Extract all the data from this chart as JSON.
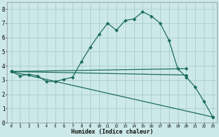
{
  "xlabel": "Humidex (Indice chaleur)",
  "bg_color": "#cce8e8",
  "grid_color": "#aacccc",
  "line_color": "#1a6b5a",
  "xlim": [
    -0.5,
    23.5
  ],
  "ylim": [
    0,
    8.5
  ],
  "xticks": [
    0,
    1,
    2,
    3,
    4,
    5,
    6,
    7,
    8,
    9,
    10,
    11,
    12,
    13,
    14,
    15,
    16,
    17,
    18,
    19,
    20,
    21,
    22,
    23
  ],
  "yticks": [
    0,
    1,
    2,
    3,
    4,
    5,
    6,
    7,
    8
  ],
  "series_main": {
    "x": [
      0,
      1,
      2,
      3,
      4,
      5,
      6,
      7,
      8,
      9,
      10,
      11,
      12,
      13,
      14,
      15,
      16,
      17,
      18,
      19,
      20,
      21,
      22,
      23
    ],
    "y": [
      3.6,
      3.3,
      3.4,
      3.3,
      2.9,
      2.9,
      3.05,
      3.2,
      4.3,
      5.3,
      6.2,
      7.0,
      6.5,
      7.2,
      7.3,
      7.8,
      7.5,
      7.0,
      5.8,
      3.8,
      3.2,
      2.5,
      1.5,
      0.4
    ]
  },
  "series_flat1": {
    "x": [
      0,
      20
    ],
    "y": [
      3.6,
      3.8
    ]
  },
  "series_flat2": {
    "x": [
      0,
      20
    ],
    "y": [
      3.6,
      3.35
    ]
  },
  "series_diag": {
    "x": [
      0,
      23
    ],
    "y": [
      3.6,
      0.4
    ]
  }
}
